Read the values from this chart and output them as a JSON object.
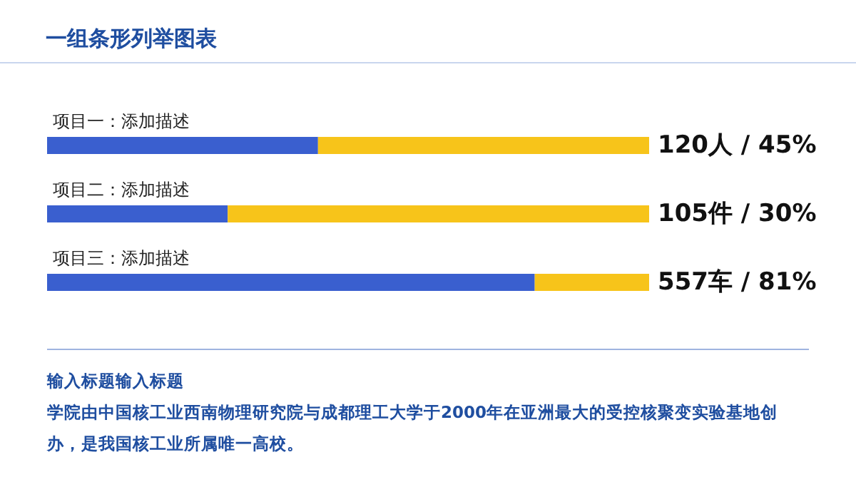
{
  "chart_data": {
    "type": "bar",
    "orientation": "horizontal",
    "stacked": true,
    "title": "一组条形列举图表",
    "categories": [
      "项目一：添加描述",
      "项目二：添加描述",
      "项目三：添加描述"
    ],
    "series": [
      {
        "color": "#3a5fcf",
        "values": [
          45,
          30,
          81
        ],
        "value_labels": [
          "120人 / 45%",
          "105件 / 30%",
          "557车 / 81%"
        ]
      },
      {
        "color": "#f7c41a",
        "values": [
          55,
          70,
          19
        ]
      }
    ],
    "xlim": [
      0,
      100
    ],
    "tick_labels": false,
    "annotations": [
      "输入标题输入标题",
      "学院由中国核工业西南物理研究院与成都理工大学于2000年在亚洲最大的受控核聚变实验基地创办，是我国核工业所属唯一高校。"
    ]
  }
}
